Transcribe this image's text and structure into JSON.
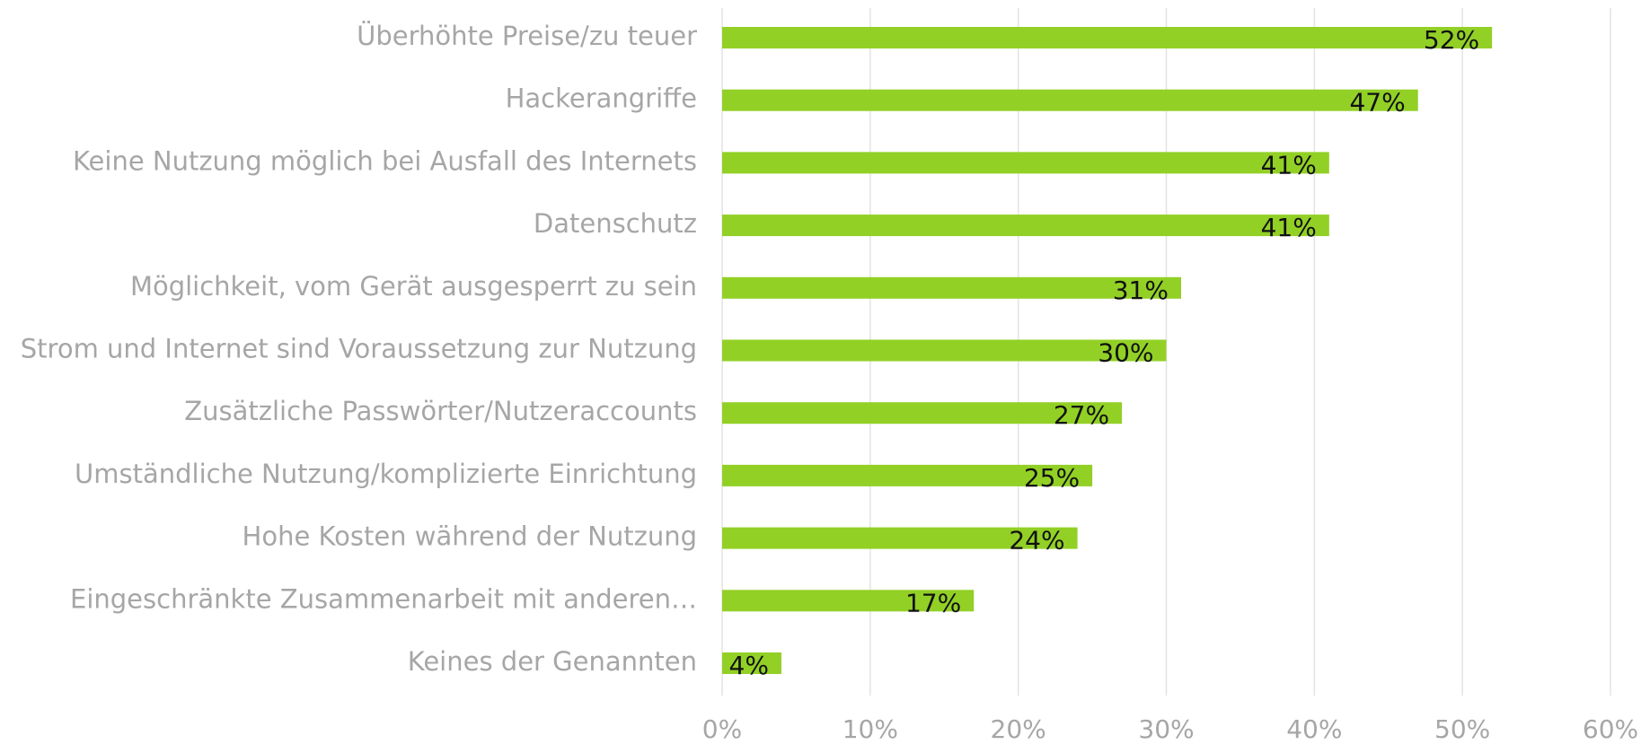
{
  "chart_data": {
    "type": "hbar",
    "categories": [
      "Überhöhte Preise/zu teuer",
      "Hackerangriffe",
      "Keine Nutzung möglich bei Ausfall des Internets",
      "Datenschutz",
      "Möglichkeit, vom Gerät ausgesperrt zu sein",
      "Strom und Internet sind Voraussetzung zur Nutzung",
      "Zusätzliche Passwörter/Nutzeraccounts",
      "Umständliche Nutzung/komplizierte Einrichtung",
      "Hohe Kosten während der Nutzung",
      "Eingeschränkte Zusammenarbeit mit anderen…",
      "Keines der Genannten"
    ],
    "values": [
      52,
      47,
      41,
      41,
      31,
      30,
      27,
      25,
      24,
      17,
      4
    ],
    "value_labels": [
      "52%",
      "47%",
      "41%",
      "41%",
      "31%",
      "30%",
      "27%",
      "25%",
      "24%",
      "17%",
      "4%"
    ],
    "color": "#92d026",
    "xlim": [
      0,
      60
    ],
    "xticks": [
      {
        "value": 0,
        "label": "0%"
      },
      {
        "value": 10,
        "label": "10%"
      },
      {
        "value": 20,
        "label": "20%"
      },
      {
        "value": 30,
        "label": "30%"
      },
      {
        "value": 40,
        "label": "40%"
      },
      {
        "value": 50,
        "label": "50%"
      },
      {
        "value": 60,
        "label": "60%"
      }
    ],
    "grid": true
  }
}
